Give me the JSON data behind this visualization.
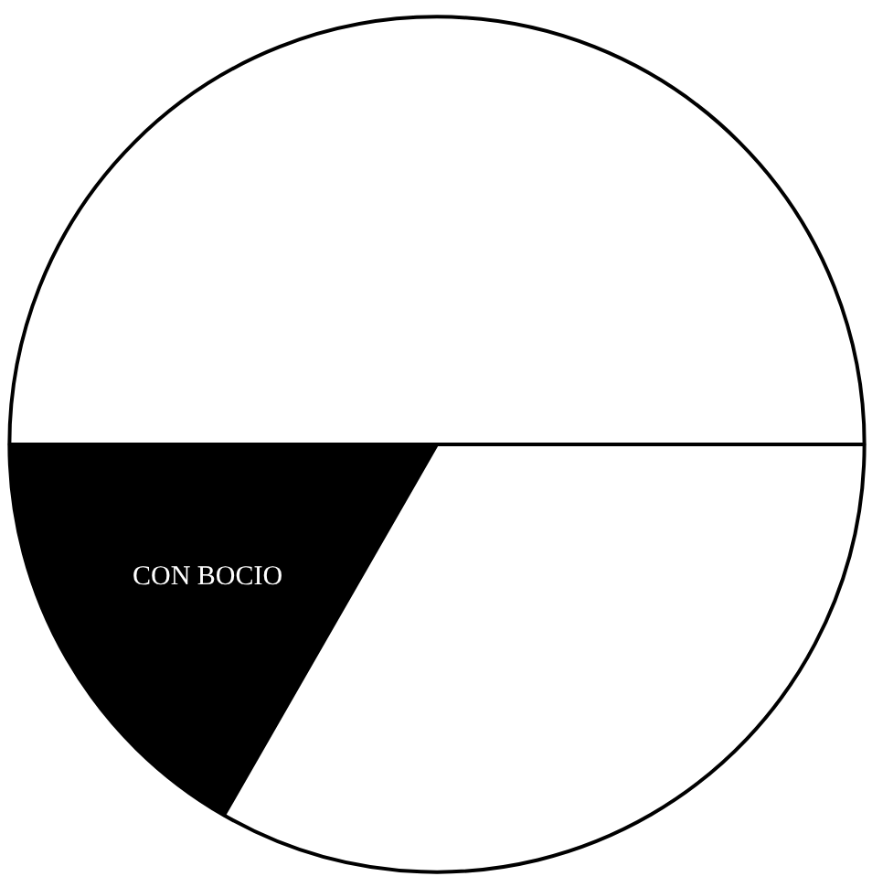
{
  "chart_data": {
    "type": "pie",
    "categories": [
      null,
      "CON BOCIO",
      null
    ],
    "values": [
      50,
      16.7,
      33.3
    ],
    "colors": [
      "#ffffff",
      "#000000",
      "#ffffff"
    ]
  }
}
